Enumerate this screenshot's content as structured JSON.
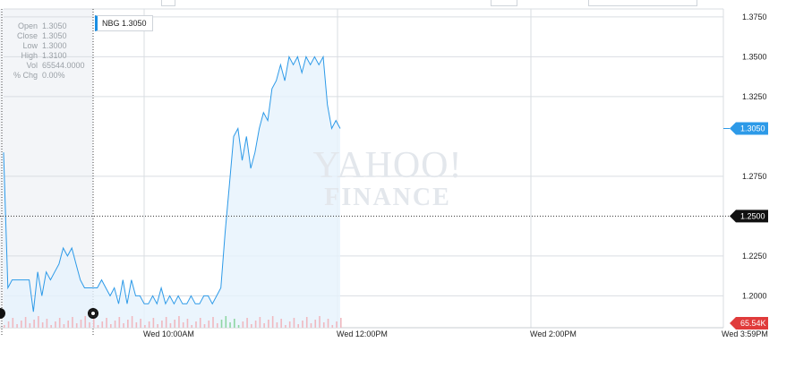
{
  "tooltip": {
    "symbol": "NBG",
    "price": "1.3050"
  },
  "ohlc": [
    {
      "k": "Open",
      "v": "1.3050"
    },
    {
      "k": "Close",
      "v": "1.3050"
    },
    {
      "k": "Low",
      "v": "1.3000"
    },
    {
      "k": "High",
      "v": "1.3100"
    },
    {
      "k": "Vol",
      "v": "65544.0000"
    },
    {
      "k": "% Chg",
      "v": "0.00%"
    }
  ],
  "watermark": {
    "line1": "YAHOO!",
    "line2": "FINANCE"
  },
  "colors": {
    "line": "#2d9ae8",
    "area": "#e6f2fc",
    "grid": "#d9dde2",
    "price_badge": "#2d9ae8",
    "prev_close_badge": "#111111",
    "vol_badge": "#e03b3b",
    "vol_bar": "#f0b8bf"
  },
  "icons": {
    "left_handle": "zoom-handle-left-icon",
    "right_handle": "zoom-handle-right-icon"
  },
  "chart_data": {
    "type": "line",
    "symbol": "NBG",
    "ylim": [
      1.18,
      1.38
    ],
    "y_ticks": [
      "1.3750",
      "1.3500",
      "1.3250",
      "1.2750",
      "1.2500",
      "1.2250",
      "1.2000"
    ],
    "x_ticks": [
      "Wed 10:00AM",
      "Wed 12:00PM",
      "Wed 2:00PM",
      "Wed 3:59PM"
    ],
    "current_price_label": "1.3050",
    "previous_close_label": "1.2500",
    "previous_close": 1.25,
    "volume_label": "65.54K",
    "series": [
      {
        "values": [
          1.29,
          1.205,
          1.21,
          1.21,
          1.21,
          1.21,
          1.21,
          1.19,
          1.215,
          1.2,
          1.215,
          1.21,
          1.215,
          1.22,
          1.23,
          1.225,
          1.23,
          1.22,
          1.21,
          1.205,
          1.205,
          1.205,
          1.205,
          1.21,
          1.205,
          1.2,
          1.205,
          1.195,
          1.21,
          1.195,
          1.21,
          1.2,
          1.2,
          1.195,
          1.195,
          1.2,
          1.195,
          1.205,
          1.195,
          1.2,
          1.195,
          1.2,
          1.195,
          1.195,
          1.2,
          1.195,
          1.195,
          1.2,
          1.2,
          1.195,
          1.2,
          1.205,
          1.24,
          1.27,
          1.3,
          1.305,
          1.285,
          1.3,
          1.28,
          1.29,
          1.305,
          1.315,
          1.31,
          1.33,
          1.335,
          1.345,
          1.335,
          1.35,
          1.345,
          1.35,
          1.34,
          1.35,
          1.345,
          1.35,
          1.345,
          1.35,
          1.32,
          1.305,
          1.31,
          1.305
        ]
      }
    ]
  }
}
